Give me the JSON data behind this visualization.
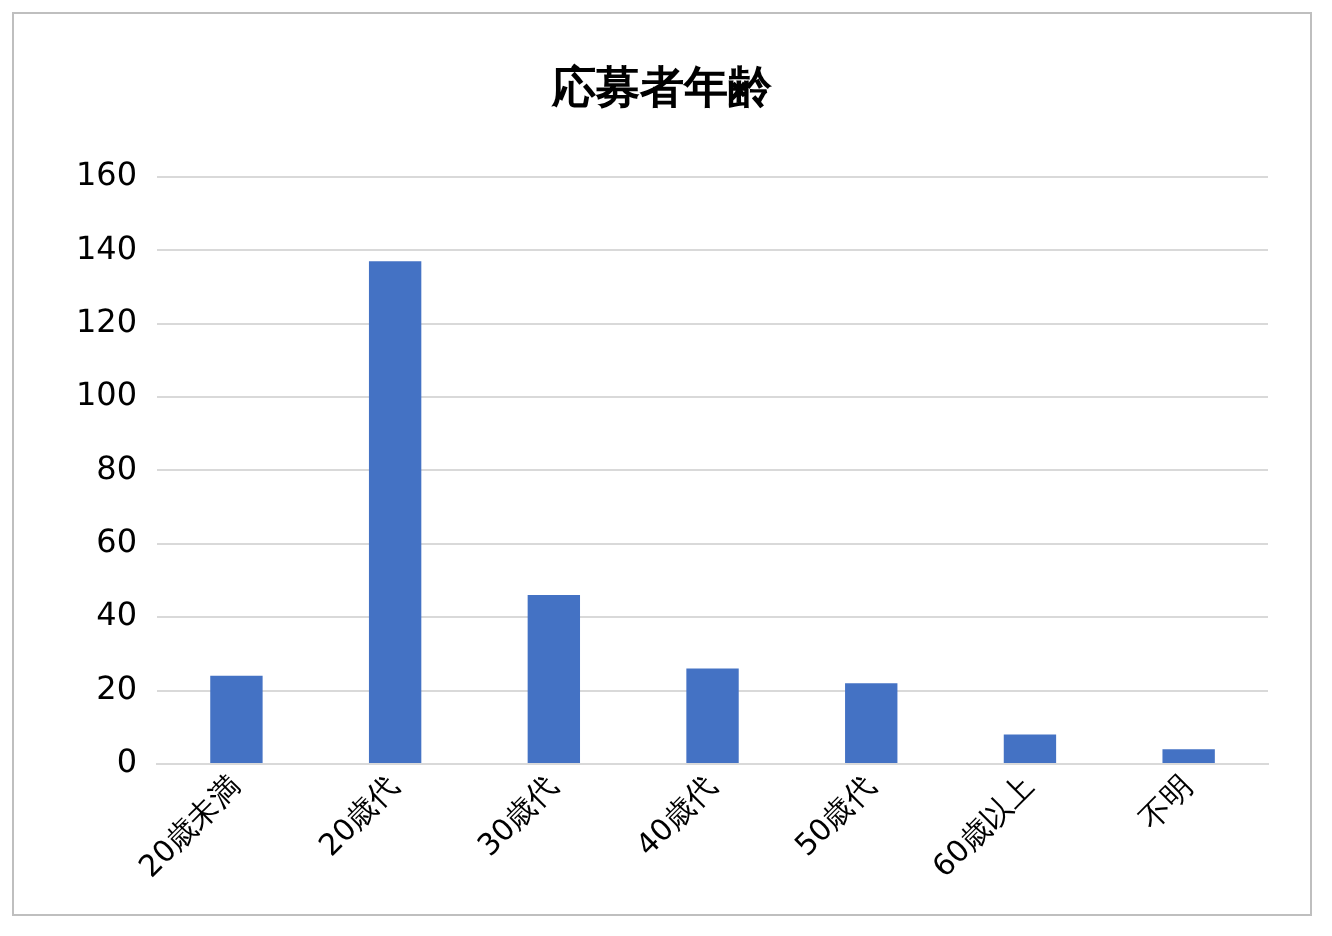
{
  "chart_data": {
    "type": "bar",
    "title": "応募者年齢",
    "categories": [
      "20歳未満",
      "20歳代",
      "30歳代",
      "40歳代",
      "50歳代",
      "60歳以上",
      "不明"
    ],
    "values": [
      24,
      137,
      46,
      26,
      22,
      8,
      4
    ],
    "color": "#4472c4",
    "ylim": [
      0,
      160
    ],
    "yticks": [
      0,
      20,
      40,
      60,
      80,
      100,
      120,
      140,
      160
    ],
    "grid": "y",
    "legend": false
  }
}
